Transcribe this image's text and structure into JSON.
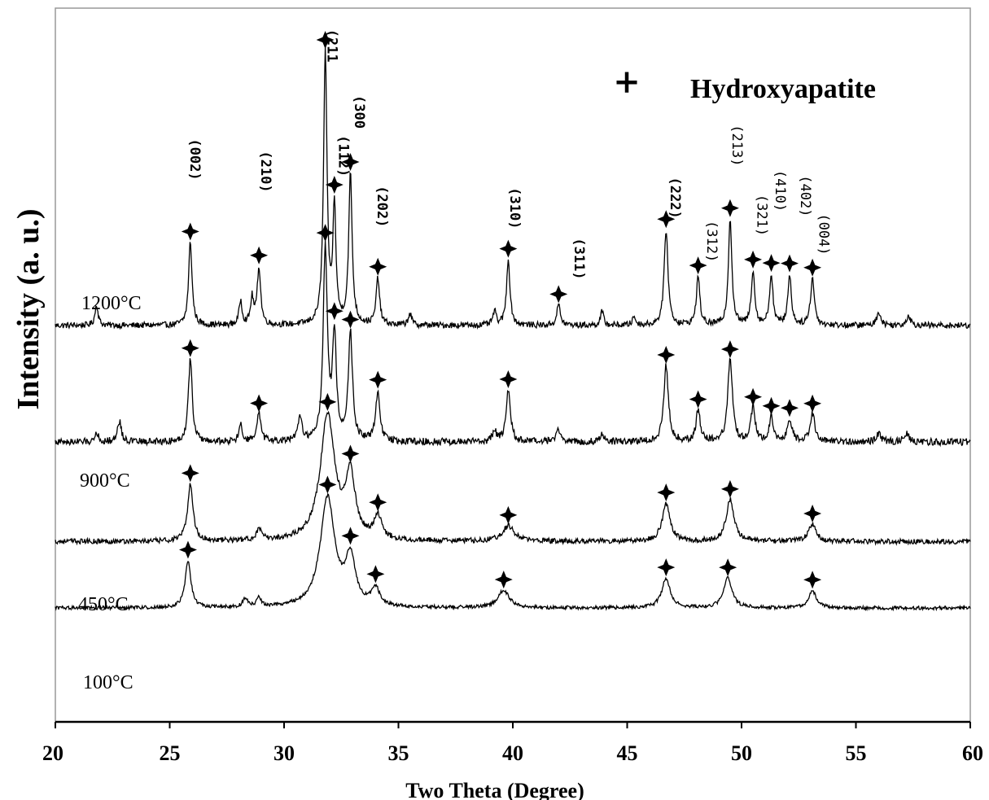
{
  "chart_data": {
    "type": "line",
    "xlabel": "Two Theta (Degree)",
    "ylabel": "Intensity (a. u.)",
    "xlim": [
      20,
      60
    ],
    "xticks": [
      "20",
      "25",
      "30",
      "35",
      "40",
      "45",
      "50",
      "55",
      "60"
    ],
    "grid": false,
    "legend": {
      "position": "top-right",
      "symbol": "+",
      "label": "Hydroxyapatite"
    },
    "series": [
      {
        "name": "1200°C",
        "label": "1200°C",
        "baseline": 0.97,
        "noise": 0.035,
        "peaks": [
          {
            "x": 21.8,
            "h": 0.12,
            "w": 0.08
          },
          {
            "x": 25.9,
            "h": 0.48,
            "w": 0.09,
            "mark": true
          },
          {
            "x": 28.1,
            "h": 0.14,
            "w": 0.08
          },
          {
            "x": 28.6,
            "h": 0.15,
            "w": 0.08
          },
          {
            "x": 28.9,
            "h": 0.33,
            "w": 0.09,
            "mark": true
          },
          {
            "x": 31.8,
            "h": 1.55,
            "w": 0.09,
            "mark": true
          },
          {
            "x": 32.2,
            "h": 0.66,
            "w": 0.08,
            "mark": true
          },
          {
            "x": 32.9,
            "h": 0.86,
            "w": 0.09,
            "mark": true
          },
          {
            "x": 34.1,
            "h": 0.27,
            "w": 0.09,
            "mark": true
          },
          {
            "x": 35.5,
            "h": 0.07,
            "w": 0.08
          },
          {
            "x": 39.2,
            "h": 0.08,
            "w": 0.08
          },
          {
            "x": 39.8,
            "h": 0.38,
            "w": 0.09,
            "mark": true
          },
          {
            "x": 42.0,
            "h": 0.12,
            "w": 0.09,
            "mark": true
          },
          {
            "x": 43.9,
            "h": 0.08,
            "w": 0.08
          },
          {
            "x": 45.3,
            "h": 0.05,
            "w": 0.08
          },
          {
            "x": 46.7,
            "h": 0.55,
            "w": 0.1,
            "mark": true
          },
          {
            "x": 48.1,
            "h": 0.28,
            "w": 0.09,
            "mark": true
          },
          {
            "x": 49.5,
            "h": 0.61,
            "w": 0.09,
            "mark": true
          },
          {
            "x": 50.5,
            "h": 0.31,
            "w": 0.09,
            "mark": true
          },
          {
            "x": 51.3,
            "h": 0.29,
            "w": 0.09,
            "mark": true
          },
          {
            "x": 52.1,
            "h": 0.29,
            "w": 0.09,
            "mark": true
          },
          {
            "x": 53.1,
            "h": 0.27,
            "w": 0.1,
            "mark": true
          },
          {
            "x": 56.0,
            "h": 0.08,
            "w": 0.1
          },
          {
            "x": 57.3,
            "h": 0.06,
            "w": 0.1
          }
        ]
      },
      {
        "name": "900°C",
        "label": "900°C",
        "baseline": 0.3,
        "noise": 0.04,
        "peaks": [
          {
            "x": 21.8,
            "h": 0.06,
            "w": 0.08
          },
          {
            "x": 22.8,
            "h": 0.12,
            "w": 0.1
          },
          {
            "x": 25.9,
            "h": 0.48,
            "w": 0.1,
            "mark": true
          },
          {
            "x": 28.1,
            "h": 0.1,
            "w": 0.08
          },
          {
            "x": 28.9,
            "h": 0.16,
            "w": 0.1,
            "mark": true
          },
          {
            "x": 30.7,
            "h": 0.14,
            "w": 0.1
          },
          {
            "x": 31.8,
            "h": 1.1,
            "w": 0.11,
            "mark": true
          },
          {
            "x": 32.2,
            "h": 0.6,
            "w": 0.1,
            "mark": true
          },
          {
            "x": 32.9,
            "h": 0.62,
            "w": 0.11,
            "mark": true
          },
          {
            "x": 34.1,
            "h": 0.29,
            "w": 0.11,
            "mark": true
          },
          {
            "x": 39.2,
            "h": 0.06,
            "w": 0.1
          },
          {
            "x": 39.8,
            "h": 0.3,
            "w": 0.11,
            "mark": true
          },
          {
            "x": 42.0,
            "h": 0.07,
            "w": 0.12
          },
          {
            "x": 43.9,
            "h": 0.05,
            "w": 0.1
          },
          {
            "x": 46.7,
            "h": 0.44,
            "w": 0.12,
            "mark": true
          },
          {
            "x": 48.1,
            "h": 0.18,
            "w": 0.11,
            "mark": true
          },
          {
            "x": 49.5,
            "h": 0.47,
            "w": 0.12,
            "mark": true
          },
          {
            "x": 50.5,
            "h": 0.19,
            "w": 0.11,
            "mark": true
          },
          {
            "x": 51.3,
            "h": 0.14,
            "w": 0.11,
            "mark": true
          },
          {
            "x": 52.1,
            "h": 0.13,
            "w": 0.11,
            "mark": true
          },
          {
            "x": 53.1,
            "h": 0.16,
            "w": 0.13,
            "mark": true
          },
          {
            "x": 56.0,
            "h": 0.05,
            "w": 0.12
          },
          {
            "x": 57.2,
            "h": 0.05,
            "w": 0.12
          }
        ]
      },
      {
        "name": "450°C",
        "label": "450°C",
        "baseline": -0.27,
        "noise": 0.03,
        "peaks": [
          {
            "x": 25.9,
            "h": 0.33,
            "w": 0.14,
            "mark": true
          },
          {
            "x": 28.9,
            "h": 0.06,
            "w": 0.14
          },
          {
            "x": 31.9,
            "h": 0.72,
            "w": 0.38,
            "mark": true
          },
          {
            "x": 32.9,
            "h": 0.35,
            "w": 0.25,
            "mark": true
          },
          {
            "x": 34.1,
            "h": 0.13,
            "w": 0.2,
            "mark": true
          },
          {
            "x": 39.8,
            "h": 0.09,
            "w": 0.3,
            "mark": true
          },
          {
            "x": 46.7,
            "h": 0.22,
            "w": 0.2,
            "mark": true
          },
          {
            "x": 49.5,
            "h": 0.24,
            "w": 0.2,
            "mark": true
          },
          {
            "x": 53.1,
            "h": 0.1,
            "w": 0.2,
            "mark": true
          }
        ]
      },
      {
        "name": "100°C",
        "label": "100°C",
        "baseline": -0.65,
        "noise": 0.02,
        "peaks": [
          {
            "x": 25.8,
            "h": 0.27,
            "w": 0.15,
            "mark": true
          },
          {
            "x": 28.3,
            "h": 0.05,
            "w": 0.12
          },
          {
            "x": 28.9,
            "h": 0.05,
            "w": 0.12
          },
          {
            "x": 31.9,
            "h": 0.63,
            "w": 0.38,
            "mark": true
          },
          {
            "x": 32.9,
            "h": 0.27,
            "w": 0.25,
            "mark": true
          },
          {
            "x": 34.0,
            "h": 0.1,
            "w": 0.2,
            "mark": true
          },
          {
            "x": 39.6,
            "h": 0.1,
            "w": 0.3,
            "mark": true
          },
          {
            "x": 46.7,
            "h": 0.17,
            "w": 0.22,
            "mark": true
          },
          {
            "x": 49.4,
            "h": 0.17,
            "w": 0.22,
            "mark": true
          },
          {
            "x": 53.1,
            "h": 0.1,
            "w": 0.2,
            "mark": true
          }
        ]
      }
    ],
    "annotations": [
      {
        "text": "(002)",
        "x": 25.9,
        "y": 2.05,
        "bold": true
      },
      {
        "text": "(210)",
        "x": 29.0,
        "y": 1.98,
        "bold": true
      },
      {
        "text": "(211",
        "x": 31.9,
        "y": 2.68,
        "bold": true
      },
      {
        "text": "(112)",
        "x": 32.4,
        "y": 2.07,
        "bold": true
      },
      {
        "text": "(300",
        "x": 33.1,
        "y": 2.3,
        "bold": true
      },
      {
        "text": "(202)",
        "x": 34.1,
        "y": 1.78,
        "bold": true
      },
      {
        "text": "(310)",
        "x": 39.9,
        "y": 1.77,
        "bold": true
      },
      {
        "text": "(311)",
        "x": 42.7,
        "y": 1.48,
        "bold": true
      },
      {
        "text": "(222)",
        "x": 46.9,
        "y": 1.83,
        "bold": true
      },
      {
        "text": "(312)",
        "x": 48.5,
        "y": 1.58,
        "bold": false
      },
      {
        "text": "(213)",
        "x": 49.6,
        "y": 2.13,
        "bold": false
      },
      {
        "text": "(321)",
        "x": 50.7,
        "y": 1.73,
        "bold": false
      },
      {
        "text": "(410)",
        "x": 51.5,
        "y": 1.87,
        "bold": false
      },
      {
        "text": "(402)",
        "x": 52.6,
        "y": 1.84,
        "bold": false
      },
      {
        "text": "(004)",
        "x": 53.4,
        "y": 1.62,
        "bold": false
      }
    ]
  }
}
